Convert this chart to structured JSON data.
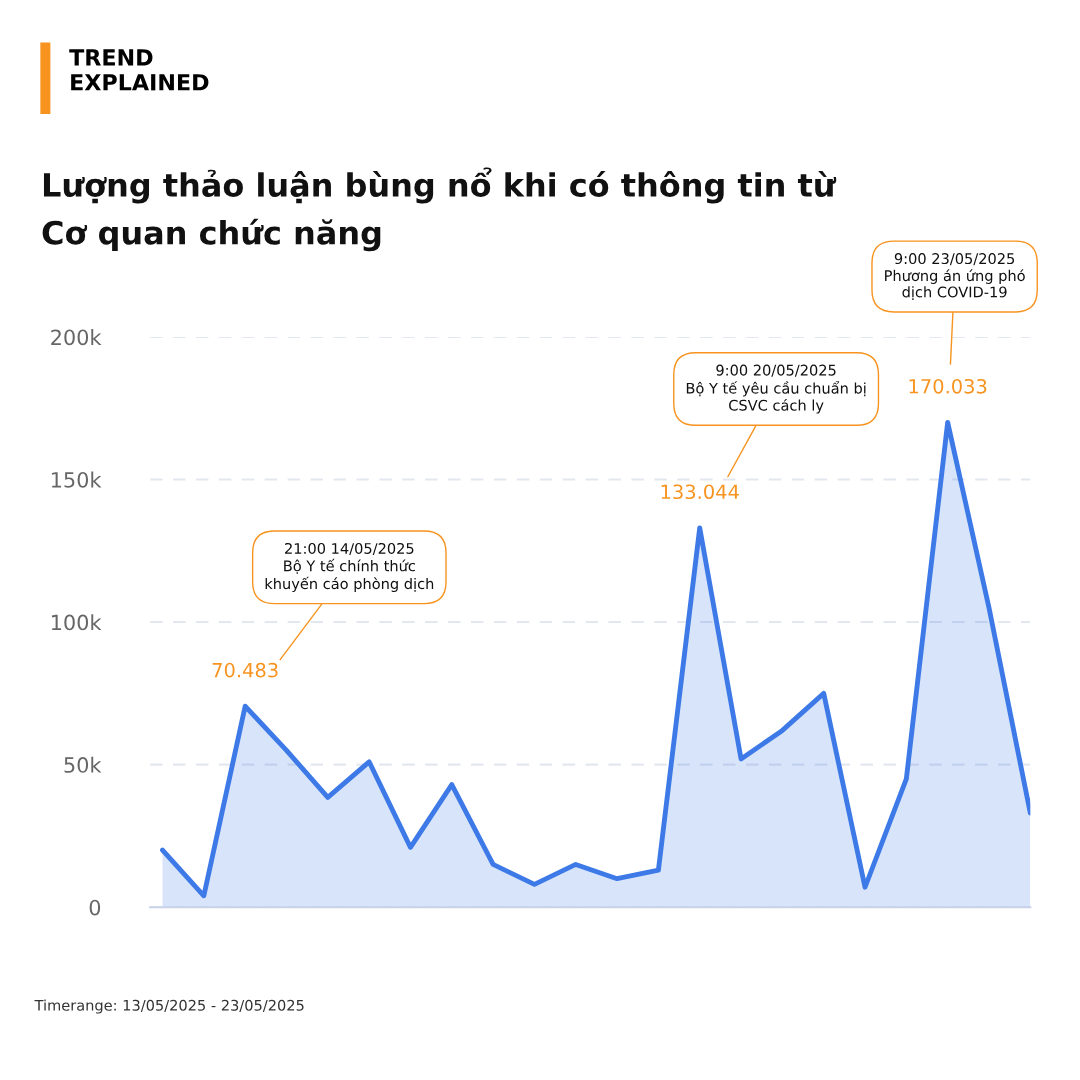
{
  "chart_data": {
    "type": "area",
    "title": "Lượng thảo luận bùng nổ khi có thông tin từ Cơ quan chức năng",
    "categories": [
      null,
      null,
      null,
      null,
      null,
      null,
      null,
      null,
      null,
      null,
      null,
      null,
      null,
      null,
      null,
      null,
      null,
      null,
      null,
      null,
      null,
      null
    ],
    "series": [
      {
        "color": "#3d7ae8",
        "values": [
          20000,
          4000,
          70483,
          55000,
          38500,
          51000,
          21000,
          43000,
          15000,
          8000,
          15000,
          10000,
          13000,
          133044,
          52000,
          62000,
          75000,
          7000,
          45000,
          170033,
          105000,
          33000
        ],
        "value_labels": [
          null,
          null,
          "70.483",
          null,
          null,
          null,
          null,
          null,
          null,
          null,
          null,
          null,
          null,
          "133.044",
          null,
          null,
          null,
          null,
          null,
          "170.033",
          null,
          null
        ]
      }
    ],
    "ylim": [
      0,
      200000
    ],
    "yticks": [
      {
        "value": 0,
        "label": "0"
      },
      {
        "value": 50000,
        "label": "50k"
      },
      {
        "value": 100000,
        "label": "100k"
      },
      {
        "value": 150000,
        "label": "150k"
      },
      {
        "value": 200000,
        "label": "200k"
      }
    ],
    "grid": "y",
    "tick_labels": "y",
    "legend": false,
    "annotations": [
      "21:00 14/05/2025\nBộ Y tế chính thức\nkhuyến cáo phòng dịch",
      "9:00 20/05/2025\nBộ Y tế yêu cầu chuẩn bị\nCSVC cách ly",
      "9:00 23/05/2025\nPhương án ứng phó\ndịch COVID-19",
      "TREND\nEXPLAINED",
      "Timerange: 13/05/2025 - 23/05/2025"
    ]
  }
}
